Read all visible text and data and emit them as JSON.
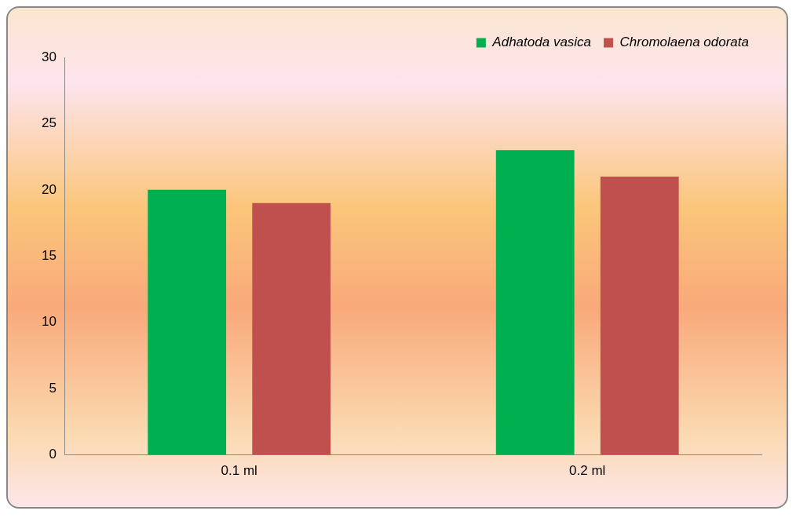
{
  "chart_data": {
    "type": "bar",
    "categories": [
      "0.1 ml",
      "0.2 ml"
    ],
    "series": [
      {
        "name": "Adhatoda vasica",
        "color": "#00b050",
        "values": [
          20,
          23
        ]
      },
      {
        "name": "Chromolaena odorata",
        "color": "#c0504d",
        "values": [
          19,
          21
        ]
      }
    ],
    "ylim": [
      0,
      30
    ],
    "yticks": [
      0,
      5,
      10,
      15,
      20,
      25,
      30
    ],
    "grid": false,
    "legend": "top right"
  }
}
